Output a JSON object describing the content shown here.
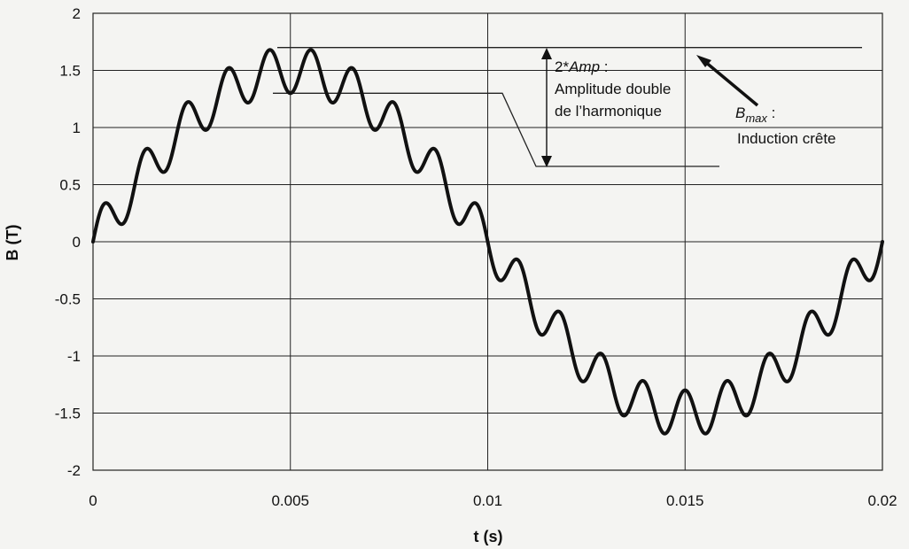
{
  "chart_data": {
    "type": "line",
    "xlabel": "t (s)",
    "ylabel": "B (T)",
    "xlim": [
      0,
      0.02
    ],
    "ylim": [
      -2,
      2
    ],
    "x_ticks": [
      "0",
      "0.005",
      "0.01",
      "0.015",
      "0.02"
    ],
    "y_ticks": [
      "2",
      "1.5",
      "1",
      "0.5",
      "0",
      "-0.5",
      "-1",
      "-1.5",
      "-2"
    ],
    "grid": true,
    "series": [
      {
        "model": "fundamental + harmonic",
        "fundamental_amplitude": 1.5,
        "fundamental_frequency_hz": 50,
        "harmonic_amplitude": 0.2,
        "harmonic_order": 19
      }
    ],
    "reference_levels": {
      "bmax": 1.7,
      "upper_double_amp": 1.3,
      "lower_double_amp": 0.66
    },
    "annotations": {
      "amp": {
        "line1_prefix": "2*",
        "line1_italic": "Amp",
        "line1_suffix": " :",
        "line2": "Amplitude double",
        "line3": "de l’harmonique"
      },
      "bmax": {
        "line1_italic": "B",
        "line1_sub": "max",
        "line1_suffix": " :",
        "line2": "Induction crête"
      }
    }
  }
}
